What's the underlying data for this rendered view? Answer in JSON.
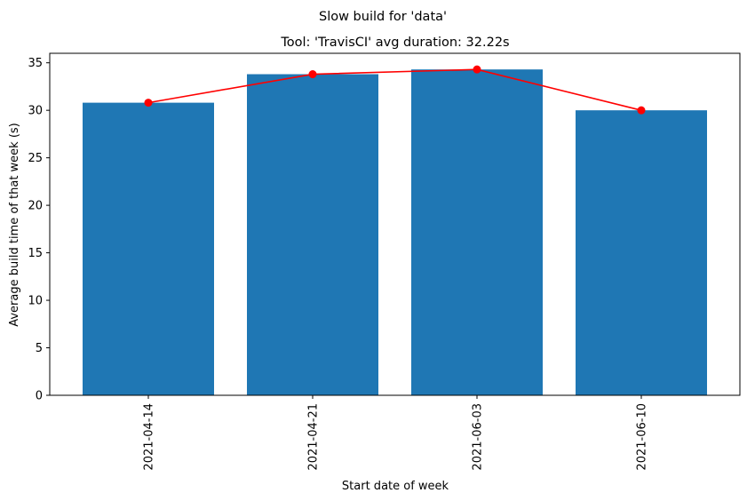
{
  "chart_data": {
    "type": "bar",
    "suptitle": "Slow build for 'data'",
    "title": "Tool: 'TravisCI' avg duration: 32.22s",
    "xlabel": "Start date of week",
    "ylabel": "Average build time of that week (s)",
    "categories": [
      "2021-04-14",
      "2021-04-21",
      "2021-06-03",
      "2021-06-10"
    ],
    "values": [
      30.8,
      33.8,
      34.3,
      30.0
    ],
    "line_values": [
      30.8,
      33.8,
      34.3,
      30.0
    ],
    "ylim": [
      0,
      36
    ],
    "yticks": [
      0,
      5,
      10,
      15,
      20,
      25,
      30,
      35
    ],
    "grid": false,
    "colors": {
      "bar": "#1f77b4",
      "line": "#ff0000"
    }
  }
}
